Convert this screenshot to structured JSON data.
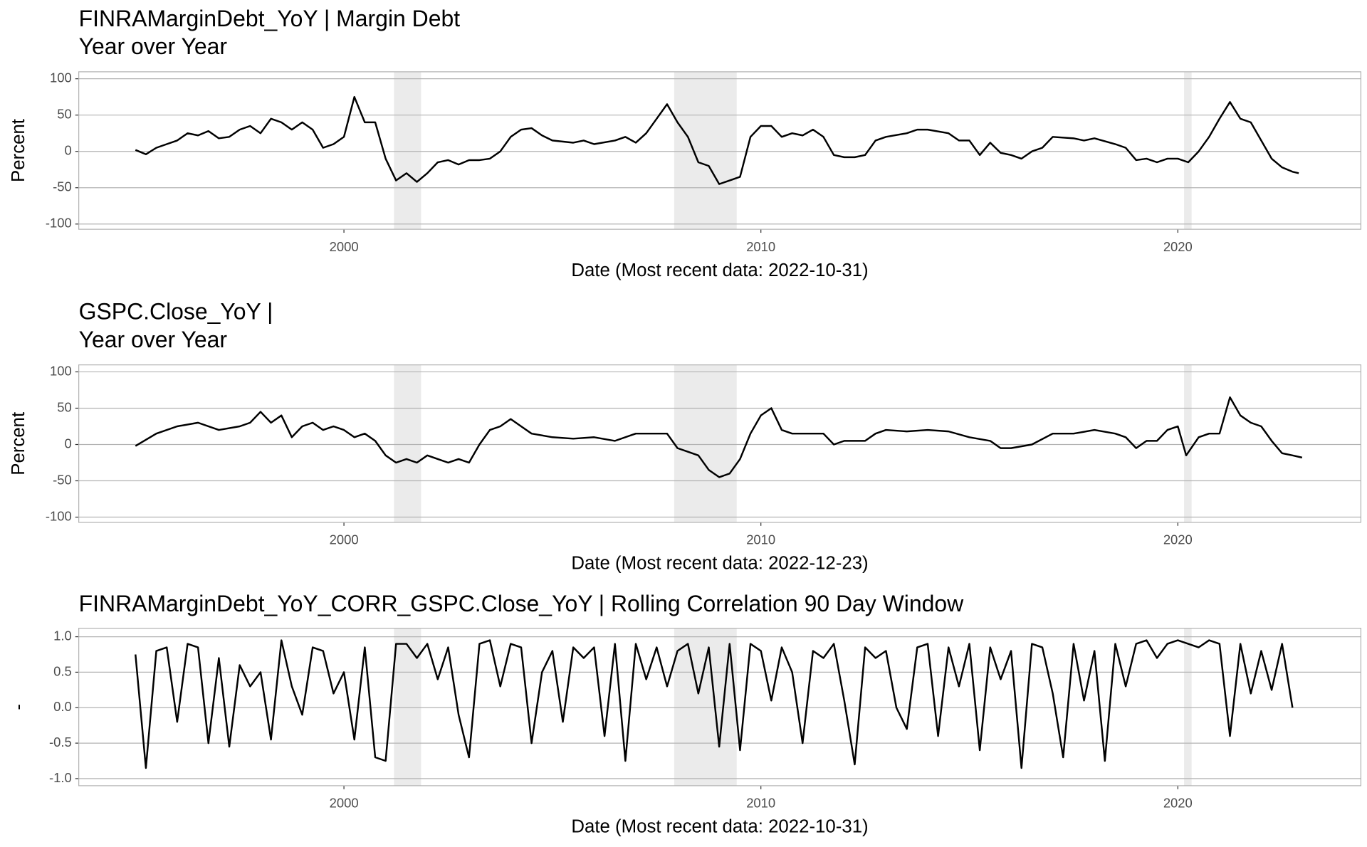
{
  "chart_data": [
    {
      "type": "line",
      "title": "FINRAMarginDebt_YoY | Margin Debt",
      "subtitle": "Year over Year",
      "y_label": "Percent",
      "x_label": "Date (Most recent data: 2022-10-31)",
      "xlim": [
        1993.64,
        2024.39
      ],
      "xticks": [
        2000,
        2010,
        2020
      ],
      "ylim": [
        -107.2,
        109.6
      ],
      "yticks": [
        -100,
        -50,
        0,
        50,
        100
      ],
      "grid": true,
      "color": "#000000",
      "shade_color": "#ebebeb",
      "shaded_periods": [
        [
          2001.2,
          2001.85
        ],
        [
          2007.92,
          2009.42
        ],
        [
          2020.15,
          2020.33
        ]
      ],
      "x": [
        1995,
        1995.25,
        1995.5,
        1995.75,
        1996,
        1996.25,
        1996.5,
        1996.75,
        1997,
        1997.25,
        1997.5,
        1997.75,
        1998,
        1998.25,
        1998.5,
        1998.75,
        1999,
        1999.25,
        1999.5,
        1999.75,
        2000,
        2000.25,
        2000.5,
        2000.75,
        2001,
        2001.25,
        2001.5,
        2001.75,
        2002,
        2002.25,
        2002.5,
        2002.75,
        2003,
        2003.25,
        2003.5,
        2003.75,
        2004,
        2004.25,
        2004.5,
        2004.75,
        2005,
        2005.5,
        2005.75,
        2006,
        2006.5,
        2006.75,
        2007,
        2007.25,
        2007.5,
        2007.75,
        2008,
        2008.25,
        2008.5,
        2008.75,
        2009,
        2009.25,
        2009.5,
        2009.75,
        2010,
        2010.25,
        2010.5,
        2010.75,
        2011,
        2011.25,
        2011.5,
        2011.75,
        2012,
        2012.25,
        2012.5,
        2012.75,
        2013,
        2013.5,
        2013.75,
        2014,
        2014.5,
        2014.75,
        2015,
        2015.25,
        2015.5,
        2015.75,
        2016,
        2016.25,
        2016.5,
        2016.75,
        2017,
        2017.5,
        2017.75,
        2018,
        2018.5,
        2018.75,
        2019,
        2019.25,
        2019.5,
        2019.75,
        2020,
        2020.25,
        2020.5,
        2020.75,
        2021,
        2021.25,
        2021.5,
        2021.75,
        2022,
        2022.25,
        2022.5,
        2022.75,
        2022.9
      ],
      "values": [
        2,
        -4,
        5,
        10,
        15,
        25,
        22,
        28,
        18,
        20,
        30,
        35,
        25,
        45,
        40,
        30,
        40,
        30,
        5,
        10,
        20,
        75,
        40,
        40,
        -10,
        -40,
        -30,
        -42,
        -30,
        -15,
        -12,
        -18,
        -12,
        -12,
        -10,
        0,
        20,
        30,
        32,
        22,
        15,
        12,
        15,
        10,
        15,
        20,
        12,
        25,
        45,
        65,
        40,
        20,
        -15,
        -20,
        -45,
        -40,
        -35,
        20,
        35,
        35,
        20,
        25,
        22,
        30,
        20,
        -5,
        -8,
        -8,
        -5,
        15,
        20,
        25,
        30,
        30,
        25,
        15,
        15,
        -5,
        12,
        -2,
        -5,
        -10,
        0,
        5,
        20,
        18,
        15,
        18,
        10,
        5,
        -12,
        -10,
        -15,
        -10,
        -10,
        -15,
        0,
        20,
        45,
        68,
        45,
        40,
        15,
        -10,
        -22,
        -28,
        -30
      ]
    },
    {
      "type": "line",
      "title": "GSPC.Close_YoY |",
      "subtitle": "Year over Year",
      "y_label": "Percent",
      "x_label": "Date (Most recent data: 2022-12-23)",
      "xlim": [
        1993.64,
        2024.39
      ],
      "xticks": [
        2000,
        2010,
        2020
      ],
      "ylim": [
        -107.2,
        109.6
      ],
      "yticks": [
        -100,
        -50,
        0,
        50,
        100
      ],
      "grid": true,
      "color": "#000000",
      "shade_color": "#ebebeb",
      "shaded_periods": [
        [
          2001.2,
          2001.85
        ],
        [
          2007.92,
          2009.42
        ],
        [
          2020.15,
          2020.33
        ]
      ],
      "x": [
        1995,
        1995.5,
        1996,
        1996.5,
        1997,
        1997.5,
        1997.75,
        1998,
        1998.25,
        1998.5,
        1998.75,
        1999,
        1999.25,
        1999.5,
        1999.75,
        2000,
        2000.25,
        2000.5,
        2000.75,
        2001,
        2001.25,
        2001.5,
        2001.75,
        2002,
        2002.25,
        2002.5,
        2002.75,
        2003,
        2003.25,
        2003.5,
        2003.75,
        2004,
        2004.25,
        2004.5,
        2005,
        2005.5,
        2006,
        2006.5,
        2007,
        2007.5,
        2007.75,
        2008,
        2008.25,
        2008.5,
        2008.75,
        2009,
        2009.25,
        2009.5,
        2009.75,
        2010,
        2010.25,
        2010.5,
        2010.75,
        2011,
        2011.5,
        2011.75,
        2012,
        2012.5,
        2012.75,
        2013,
        2013.5,
        2014,
        2014.5,
        2015,
        2015.5,
        2015.75,
        2016,
        2016.5,
        2017,
        2017.5,
        2018,
        2018.5,
        2018.75,
        2019,
        2019.25,
        2019.5,
        2019.75,
        2020,
        2020.2,
        2020.5,
        2020.75,
        2021,
        2021.25,
        2021.5,
        2021.75,
        2022,
        2022.25,
        2022.5,
        2022.75,
        2022.98
      ],
      "values": [
        -2,
        15,
        25,
        30,
        20,
        25,
        30,
        45,
        30,
        40,
        10,
        25,
        30,
        20,
        25,
        20,
        10,
        15,
        5,
        -15,
        -25,
        -20,
        -25,
        -15,
        -20,
        -25,
        -20,
        -25,
        0,
        20,
        25,
        35,
        25,
        15,
        10,
        8,
        10,
        5,
        15,
        15,
        15,
        -5,
        -10,
        -15,
        -35,
        -45,
        -40,
        -20,
        15,
        40,
        50,
        20,
        15,
        15,
        15,
        0,
        5,
        5,
        15,
        20,
        18,
        20,
        18,
        10,
        5,
        -5,
        -5,
        0,
        15,
        15,
        20,
        15,
        10,
        -5,
        5,
        5,
        20,
        25,
        -15,
        10,
        15,
        15,
        65,
        40,
        30,
        25,
        5,
        -12,
        -15,
        -18
      ]
    },
    {
      "type": "line",
      "title": "FINRAMarginDebt_YoY_CORR_GSPC.Close_YoY | Rolling Correlation  90  Day Window",
      "y_label": "-",
      "x_label": "Date (Most recent data: 2022-10-31)",
      "xlim": [
        1993.64,
        2024.39
      ],
      "xticks": [
        2000,
        2010,
        2020
      ],
      "ylim": [
        -1.1,
        1.12
      ],
      "yticks": [
        {
          "value": -1,
          "label": "-1.0"
        },
        {
          "value": -0.5,
          "label": "-0.5"
        },
        {
          "value": 0,
          "label": "0.0"
        },
        {
          "value": 0.5,
          "label": "0.5"
        },
        {
          "value": 1,
          "label": "1.0"
        }
      ],
      "grid": true,
      "color": "#000000",
      "shade_color": "#ebebeb",
      "shaded_periods": [
        [
          2001.2,
          2001.85
        ],
        [
          2007.92,
          2009.42
        ],
        [
          2020.15,
          2020.33
        ]
      ],
      "x": [
        1995,
        1995.25,
        1995.5,
        1995.75,
        1996,
        1996.25,
        1996.5,
        1996.75,
        1997,
        1997.25,
        1997.5,
        1997.75,
        1998,
        1998.25,
        1998.5,
        1998.75,
        1999,
        1999.25,
        1999.5,
        1999.75,
        2000,
        2000.25,
        2000.5,
        2000.75,
        2001,
        2001.25,
        2001.5,
        2001.75,
        2002,
        2002.25,
        2002.5,
        2002.75,
        2003,
        2003.25,
        2003.5,
        2003.75,
        2004,
        2004.25,
        2004.5,
        2004.75,
        2005,
        2005.25,
        2005.5,
        2005.75,
        2006,
        2006.25,
        2006.5,
        2006.75,
        2007,
        2007.25,
        2007.5,
        2007.75,
        2008,
        2008.25,
        2008.5,
        2008.75,
        2009,
        2009.25,
        2009.5,
        2009.75,
        2010,
        2010.25,
        2010.5,
        2010.75,
        2011,
        2011.25,
        2011.5,
        2011.75,
        2012,
        2012.25,
        2012.5,
        2012.75,
        2013,
        2013.25,
        2013.5,
        2013.75,
        2014,
        2014.25,
        2014.5,
        2014.75,
        2015,
        2015.25,
        2015.5,
        2015.75,
        2016,
        2016.25,
        2016.5,
        2016.75,
        2017,
        2017.25,
        2017.5,
        2017.75,
        2018,
        2018.25,
        2018.5,
        2018.75,
        2019,
        2019.25,
        2019.5,
        2019.75,
        2020,
        2020.25,
        2020.5,
        2020.75,
        2021,
        2021.25,
        2021.5,
        2021.75,
        2022,
        2022.25,
        2022.5,
        2022.75
      ],
      "values": [
        0.75,
        -0.85,
        0.8,
        0.85,
        -0.2,
        0.9,
        0.85,
        -0.5,
        0.7,
        -0.55,
        0.6,
        0.3,
        0.5,
        -0.45,
        0.95,
        0.3,
        -0.1,
        0.85,
        0.8,
        0.2,
        0.5,
        -0.45,
        0.85,
        -0.7,
        -0.75,
        0.9,
        0.9,
        0.7,
        0.9,
        0.4,
        0.85,
        -0.1,
        -0.7,
        0.9,
        0.95,
        0.3,
        0.9,
        0.85,
        -0.5,
        0.5,
        0.8,
        -0.2,
        0.85,
        0.7,
        0.85,
        -0.4,
        0.9,
        -0.75,
        0.9,
        0.4,
        0.85,
        0.3,
        0.8,
        0.9,
        0.2,
        0.85,
        -0.55,
        0.9,
        -0.6,
        0.9,
        0.8,
        0.1,
        0.85,
        0.5,
        -0.5,
        0.8,
        0.7,
        0.9,
        0.1,
        -0.8,
        0.85,
        0.7,
        0.8,
        0,
        -0.3,
        0.85,
        0.9,
        -0.4,
        0.85,
        0.3,
        0.9,
        -0.6,
        0.85,
        0.4,
        0.8,
        -0.85,
        0.9,
        0.85,
        0.2,
        -0.7,
        0.9,
        0.1,
        0.8,
        -0.75,
        0.9,
        0.3,
        0.9,
        0.95,
        0.7,
        0.9,
        0.95,
        0.9,
        0.85,
        0.95,
        0.9,
        -0.4,
        0.9,
        0.2,
        0.8,
        0.25,
        0.9,
        0
      ]
    }
  ]
}
